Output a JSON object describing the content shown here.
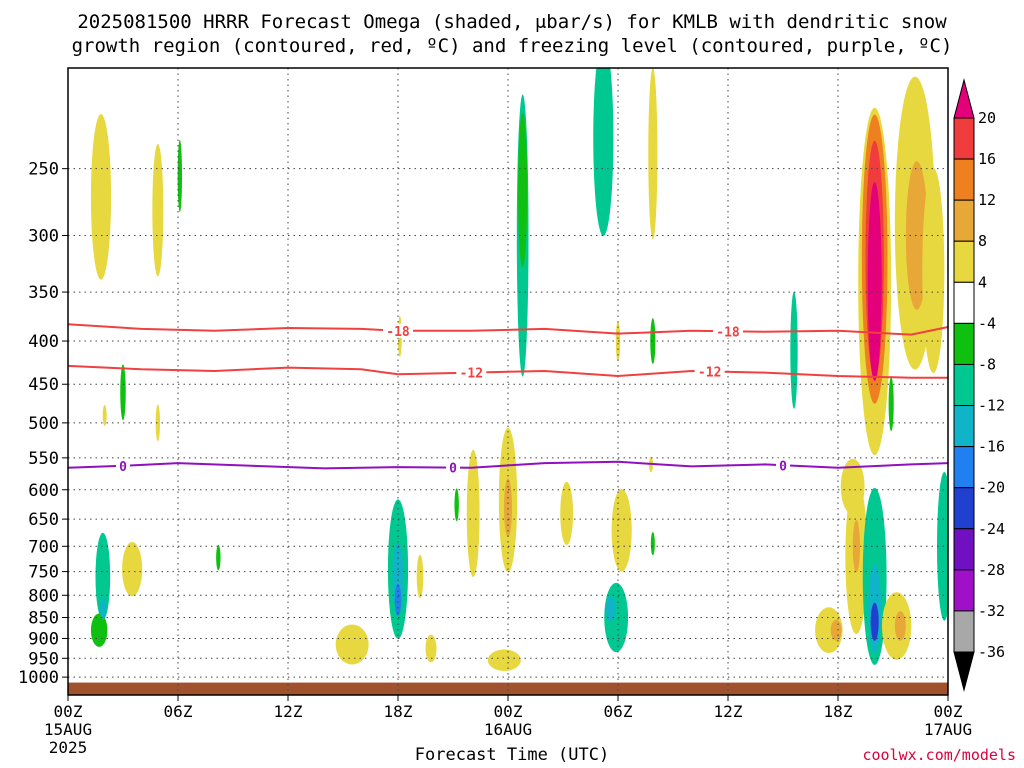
{
  "title_line1": "2025081500 HRRR Forecast Omega (shaded, μbar/s) for KMLB with dendritic snow",
  "title_line2": "growth region (contoured, red, ºC) and freezing level (contoured, purple, ºC)",
  "credit": "coolwx.com/models",
  "chart_data": {
    "type": "heatmap",
    "title": "2025081500 HRRR Forecast Omega (shaded, μbar/s) for KMLB with dendritic snow growth region (contoured, red, ºC) and freezing level (contoured, purple, ºC)",
    "xlabel": "Forecast Time (UTC)",
    "ylabel": "",
    "x_range_hours": [
      0,
      48
    ],
    "y_range_hPa": [
      1050,
      190
    ],
    "y_scale": "log",
    "x_ticks": [
      {
        "hour": 0,
        "label": "00Z",
        "sub": "15AUG",
        "sub2": "2025"
      },
      {
        "hour": 6,
        "label": "06Z"
      },
      {
        "hour": 12,
        "label": "12Z"
      },
      {
        "hour": 18,
        "label": "18Z"
      },
      {
        "hour": 24,
        "label": "00Z",
        "sub": "16AUG"
      },
      {
        "hour": 30,
        "label": "06Z"
      },
      {
        "hour": 36,
        "label": "12Z"
      },
      {
        "hour": 42,
        "label": "18Z"
      },
      {
        "hour": 48,
        "label": "00Z",
        "sub": "17AUG"
      }
    ],
    "y_ticks": [
      250,
      300,
      350,
      400,
      450,
      500,
      550,
      600,
      650,
      700,
      750,
      800,
      850,
      900,
      950,
      1000
    ],
    "grid": true,
    "colorbar": {
      "levels": [
        "20",
        "16",
        "12",
        "8",
        "4",
        "-4",
        "-8",
        "-12",
        "-16",
        "-20",
        "-24",
        "-28",
        "-32",
        "-36"
      ],
      "colors": [
        "#e3007a",
        "#f03c3c",
        "#ee8020",
        "#e8a838",
        "#e8d840",
        "#ffffff",
        "#10c010",
        "#00c890",
        "#10b4c8",
        "#2080f0",
        "#2040d0",
        "#7010c0",
        "#a010c8",
        "#a8a8a8",
        "#000000"
      ]
    },
    "contours": [
      {
        "name": "-18",
        "color": "#f04040",
        "points": [
          [
            0,
            382
          ],
          [
            4,
            387
          ],
          [
            8,
            389
          ],
          [
            12,
            386
          ],
          [
            16,
            387
          ],
          [
            18,
            389
          ],
          [
            22,
            389
          ],
          [
            26,
            387
          ],
          [
            30,
            392
          ],
          [
            34,
            389
          ],
          [
            38,
            390
          ],
          [
            42,
            389
          ],
          [
            46,
            393
          ],
          [
            48,
            385
          ]
        ],
        "labels": [
          [
            18,
            "-18"
          ],
          [
            36,
            "-18"
          ]
        ]
      },
      {
        "name": "-12",
        "color": "#f04040",
        "points": [
          [
            0,
            428
          ],
          [
            4,
            432
          ],
          [
            8,
            434
          ],
          [
            12,
            430
          ],
          [
            16,
            432
          ],
          [
            18,
            438
          ],
          [
            22,
            436
          ],
          [
            26,
            434
          ],
          [
            30,
            440
          ],
          [
            34,
            434
          ],
          [
            38,
            436
          ],
          [
            42,
            440
          ],
          [
            46,
            442
          ],
          [
            48,
            442
          ]
        ],
        "labels": [
          [
            22,
            "-12"
          ],
          [
            35,
            "-12"
          ]
        ]
      },
      {
        "name": "0",
        "color": "#9010c0",
        "points": [
          [
            0,
            565
          ],
          [
            3,
            562
          ],
          [
            6,
            558
          ],
          [
            10,
            562
          ],
          [
            14,
            566
          ],
          [
            18,
            564
          ],
          [
            22,
            565
          ],
          [
            26,
            558
          ],
          [
            30,
            556
          ],
          [
            34,
            563
          ],
          [
            38,
            560
          ],
          [
            42,
            565
          ],
          [
            46,
            560
          ],
          [
            48,
            558
          ]
        ],
        "labels": [
          [
            3,
            "0"
          ],
          [
            21,
            "0"
          ],
          [
            39,
            "0"
          ]
        ]
      }
    ],
    "omega_features": [
      {
        "t": 1.8,
        "p": 270,
        "dt": 0.55,
        "dp": 60,
        "v": 6
      },
      {
        "t": 4.9,
        "p": 280,
        "dt": 0.3,
        "dp": 50,
        "v": 5
      },
      {
        "t": 6.1,
        "p": 255,
        "dt": 0.12,
        "dp": 25,
        "v": -7
      },
      {
        "t": 2.0,
        "p": 490,
        "dt": 0.1,
        "dp": 14,
        "v": 5
      },
      {
        "t": 3.0,
        "p": 460,
        "dt": 0.15,
        "dp": 35,
        "v": -7
      },
      {
        "t": 4.9,
        "p": 500,
        "dt": 0.12,
        "dp": 25,
        "v": 5
      },
      {
        "t": 1.9,
        "p": 760,
        "dt": 0.4,
        "dp": 90,
        "v": -8
      },
      {
        "t": 1.7,
        "p": 880,
        "dt": 0.45,
        "dp": 40,
        "v": -7
      },
      {
        "t": 1.9,
        "p": 830,
        "dt": 0.15,
        "dp": 25,
        "v": -12
      },
      {
        "t": 3.5,
        "p": 745,
        "dt": 0.55,
        "dp": 55,
        "v": 5
      },
      {
        "t": 8.2,
        "p": 722,
        "dt": 0.12,
        "dp": 25,
        "v": -7
      },
      {
        "t": 15.5,
        "p": 915,
        "dt": 0.9,
        "dp": 50,
        "v": 5
      },
      {
        "t": 18.0,
        "p": 745,
        "dt": 0.55,
        "dp": 140,
        "v": -8
      },
      {
        "t": 18.0,
        "p": 760,
        "dt": 0.3,
        "dp": 70,
        "v": -12
      },
      {
        "t": 18.0,
        "p": 810,
        "dt": 0.18,
        "dp": 35,
        "v": -16
      },
      {
        "t": 19.2,
        "p": 760,
        "dt": 0.18,
        "dp": 45,
        "v": 5
      },
      {
        "t": 19.8,
        "p": 925,
        "dt": 0.3,
        "dp": 35,
        "v": 5
      },
      {
        "t": 18.1,
        "p": 395,
        "dt": 0.08,
        "dp": 22,
        "v": 5
      },
      {
        "t": 21.2,
        "p": 625,
        "dt": 0.12,
        "dp": 28,
        "v": -7
      },
      {
        "t": 22.1,
        "p": 640,
        "dt": 0.35,
        "dp": 110,
        "v": 5
      },
      {
        "t": 24.0,
        "p": 617,
        "dt": 0.5,
        "dp": 120,
        "v": 5
      },
      {
        "t": 24.0,
        "p": 630,
        "dt": 0.22,
        "dp": 50,
        "v": 8
      },
      {
        "t": 23.8,
        "p": 955,
        "dt": 0.9,
        "dp": 28,
        "v": 5
      },
      {
        "t": 24.8,
        "p": 300,
        "dt": 0.32,
        "dp": 110,
        "v": -8
      },
      {
        "t": 24.8,
        "p": 265,
        "dt": 0.25,
        "dp": 55,
        "v": -7
      },
      {
        "t": 27.2,
        "p": 640,
        "dt": 0.35,
        "dp": 55,
        "v": 5
      },
      {
        "t": 29.2,
        "p": 230,
        "dt": 0.55,
        "dp": 60,
        "v": -8
      },
      {
        "t": 30.2,
        "p": 670,
        "dt": 0.55,
        "dp": 75,
        "v": 5
      },
      {
        "t": 29.9,
        "p": 850,
        "dt": 0.65,
        "dp": 80,
        "v": -8
      },
      {
        "t": 29.6,
        "p": 830,
        "dt": 0.25,
        "dp": 30,
        "v": -12
      },
      {
        "t": 31.9,
        "p": 240,
        "dt": 0.25,
        "dp": 55,
        "v": 6
      },
      {
        "t": 30.0,
        "p": 400,
        "dt": 0.12,
        "dp": 22,
        "v": 5
      },
      {
        "t": 31.9,
        "p": 400,
        "dt": 0.14,
        "dp": 25,
        "v": -7
      },
      {
        "t": 31.8,
        "p": 560,
        "dt": 0.1,
        "dp": 12,
        "v": 5
      },
      {
        "t": 31.9,
        "p": 695,
        "dt": 0.1,
        "dp": 22,
        "v": -7
      },
      {
        "t": 39.6,
        "p": 410,
        "dt": 0.2,
        "dp": 65,
        "v": -8
      },
      {
        "t": 42.8,
        "p": 595,
        "dt": 0.65,
        "dp": 45,
        "v": 6
      },
      {
        "t": 41.5,
        "p": 880,
        "dt": 0.75,
        "dp": 55,
        "v": 5
      },
      {
        "t": 41.9,
        "p": 880,
        "dt": 0.3,
        "dp": 25,
        "v": 9
      },
      {
        "t": 43.0,
        "p": 720,
        "dt": 0.6,
        "dp": 150,
        "v": 6
      },
      {
        "t": 43.0,
        "p": 700,
        "dt": 0.2,
        "dp": 50,
        "v": 9
      },
      {
        "t": 44.0,
        "p": 760,
        "dt": 0.65,
        "dp": 180,
        "v": -8
      },
      {
        "t": 44.0,
        "p": 830,
        "dt": 0.35,
        "dp": 100,
        "v": -12
      },
      {
        "t": 44.0,
        "p": 860,
        "dt": 0.22,
        "dp": 45,
        "v": -20
      },
      {
        "t": 45.2,
        "p": 870,
        "dt": 0.8,
        "dp": 80,
        "v": 5
      },
      {
        "t": 45.4,
        "p": 870,
        "dt": 0.3,
        "dp": 35,
        "v": 10
      },
      {
        "t": 44.0,
        "p": 340,
        "dt": 0.9,
        "dp": 150,
        "v": 7
      },
      {
        "t": 44.0,
        "p": 320,
        "dt": 0.7,
        "dp": 120,
        "v": 12
      },
      {
        "t": 44.0,
        "p": 320,
        "dt": 0.5,
        "dp": 100,
        "v": 16
      },
      {
        "t": 44.0,
        "p": 340,
        "dt": 0.38,
        "dp": 90,
        "v": 21
      },
      {
        "t": 46.2,
        "p": 290,
        "dt": 1.1,
        "dp": 110,
        "v": 7
      },
      {
        "t": 46.3,
        "p": 300,
        "dt": 0.6,
        "dp": 60,
        "v": 9
      },
      {
        "t": 47.2,
        "p": 330,
        "dt": 0.6,
        "dp": 90,
        "v": 5
      },
      {
        "t": 44.9,
        "p": 475,
        "dt": 0.14,
        "dp": 35,
        "v": -7
      },
      {
        "t": 47.8,
        "p": 700,
        "dt": 0.4,
        "dp": 140,
        "v": -8
      }
    ],
    "terrain": {
      "color": "#a0522d",
      "p_top": 1015
    }
  }
}
